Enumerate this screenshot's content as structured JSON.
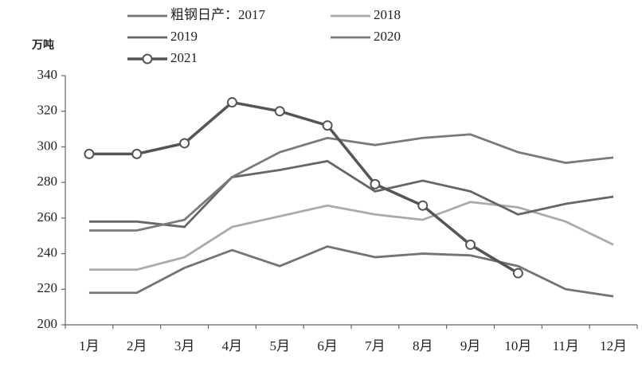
{
  "chart_data": {
    "type": "line",
    "y_unit": "万吨",
    "categories": [
      "1月",
      "2月",
      "3月",
      "4月",
      "5月",
      "6月",
      "7月",
      "8月",
      "9月",
      "10月",
      "11月",
      "12月"
    ],
    "series": [
      {
        "name": "粗钢日产：2017",
        "color": "#747474",
        "values": [
          218,
          218,
          232,
          242,
          233,
          244,
          238,
          240,
          239,
          233,
          220,
          216
        ]
      },
      {
        "name": "2018",
        "color": "#ababab",
        "values": [
          231,
          231,
          238,
          255,
          261,
          267,
          262,
          259,
          269,
          266,
          258,
          245
        ]
      },
      {
        "name": "2019",
        "color": "#666666",
        "values": [
          258,
          258,
          255,
          283,
          287,
          292,
          275,
          281,
          275,
          262,
          268,
          272
        ]
      },
      {
        "name": "2020",
        "color": "#7a7a7a",
        "values": [
          253,
          253,
          259,
          283,
          297,
          305,
          301,
          305,
          307,
          297,
          291,
          294
        ]
      },
      {
        "name": "2021",
        "color": "#555555",
        "marker": "circle",
        "values": [
          296,
          296,
          302,
          325,
          320,
          312,
          279,
          267,
          245,
          229,
          null,
          null
        ]
      }
    ],
    "ylim": [
      200,
      340
    ],
    "yticks": [
      200,
      220,
      240,
      260,
      280,
      300,
      320,
      340
    ],
    "grid": false
  }
}
